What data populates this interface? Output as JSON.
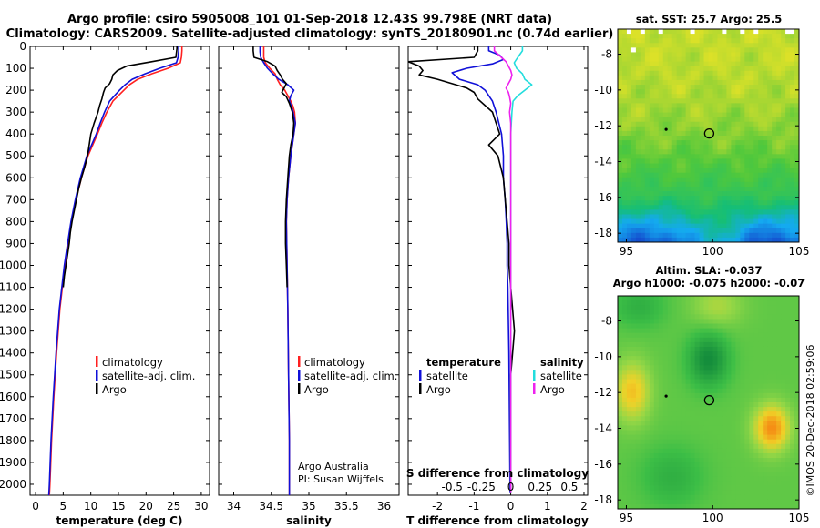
{
  "chart_data": {
    "title_line1": "Argo profile: csiro 5905008_101 01-Sep-2018 12.43S 99.798E (NRT data)",
    "title_line2": "Climatology: CARS2009. Satellite-adjusted climatology: synTS_20180901.nc (0.74d earlier)",
    "credit": "©IMOS 20-Dec-2018 02:59:06",
    "y_ticks": [
      0,
      100,
      200,
      300,
      400,
      500,
      600,
      700,
      800,
      900,
      1000,
      1100,
      1200,
      1300,
      1400,
      1500,
      1600,
      1700,
      1800,
      1900,
      2000
    ],
    "ylim": [
      0,
      2050
    ],
    "colors": {
      "climatology": "#ff2020",
      "satellite": "#1010d8",
      "argo": "#000000",
      "sat_salinity": "#22dddd",
      "argo_salinity": "#ee22ee"
    },
    "panels": [
      {
        "type": "line",
        "xlabel": "temperature (deg C)",
        "xlim": [
          -1,
          31.5
        ],
        "x_ticks": [
          0,
          5,
          10,
          15,
          20,
          25,
          30
        ],
        "x_tick_labels": [
          "0",
          "5",
          "10",
          "15",
          "20",
          "25",
          "30"
        ],
        "legend": [
          "climatology",
          "satellite-adj. clim.",
          "Argo"
        ],
        "series": [
          {
            "name": "climatology",
            "color": "climatology",
            "depth": [
              0,
              20,
              50,
              75,
              100,
              125,
              150,
              175,
              200,
              250,
              300,
              350,
              400,
              500,
              600,
              700,
              800,
              900,
              1000,
              1200,
              1400,
              1600,
              1800,
              2000,
              2050
            ],
            "values": [
              26.5,
              26.5,
              26.4,
              26.2,
              24.0,
              21.0,
              18.5,
              17.0,
              16.0,
              14.0,
              12.9,
              12.0,
              11.2,
              9.5,
              8.3,
              7.3,
              6.5,
              5.9,
              5.3,
              4.4,
              3.8,
              3.3,
              2.9,
              2.6,
              2.5
            ]
          },
          {
            "name": "satellite-adj. clim.",
            "color": "satellite",
            "depth": [
              0,
              20,
              50,
              75,
              100,
              125,
              150,
              175,
              200,
              250,
              300,
              350,
              400,
              500,
              600,
              700,
              800,
              900,
              1000,
              1200,
              1400,
              1600,
              1800,
              2000,
              2050
            ],
            "values": [
              25.9,
              25.9,
              25.8,
              25.5,
              22.5,
              19.8,
              17.5,
              16.2,
              15.2,
              13.4,
              12.5,
              11.7,
              11.0,
              9.3,
              8.1,
              7.2,
              6.4,
              5.8,
              5.2,
              4.3,
              3.7,
              3.2,
              2.8,
              2.5,
              2.4
            ]
          },
          {
            "name": "Argo",
            "color": "argo",
            "depth": [
              0,
              10,
              30,
              50,
              70,
              90,
              110,
              130,
              150,
              170,
              190,
              210,
              240,
              270,
              300,
              350,
              400,
              450,
              500,
              550,
              600,
              650,
              700,
              750,
              800,
              850,
              900,
              950,
              1000,
              1050,
              1100
            ],
            "values": [
              25.6,
              25.6,
              25.5,
              25.4,
              21.0,
              16.5,
              14.8,
              14.0,
              13.8,
              13.4,
              12.6,
              12.3,
              12.0,
              11.6,
              11.3,
              10.6,
              10.0,
              9.7,
              9.4,
              8.9,
              8.3,
              7.8,
              7.4,
              7.0,
              6.6,
              6.3,
              6.1,
              5.8,
              5.5,
              5.2,
              5.0
            ]
          }
        ]
      },
      {
        "type": "line",
        "xlabel": "salinity",
        "xlim": [
          33.8,
          36.2
        ],
        "x_ticks": [
          34,
          34.5,
          35,
          35.5,
          36
        ],
        "x_tick_labels": [
          "34",
          "34.5",
          "35",
          "35.5",
          "36"
        ],
        "legend": [
          "climatology",
          "satellite-adj. clim.",
          "Argo"
        ],
        "annotations": [
          "Argo Australia",
          "PI: Susan Wijffels"
        ],
        "series": [
          {
            "name": "climatology",
            "color": "climatology",
            "depth": [
              0,
              25,
              50,
              75,
              100,
              125,
              150,
              175,
              200,
              225,
              250,
              275,
              300,
              350,
              400,
              500,
              600,
              700,
              800,
              1000,
              1200,
              1500,
              1800,
              2000,
              2050
            ],
            "values": [
              34.4,
              34.4,
              34.4,
              34.42,
              34.48,
              34.55,
              34.58,
              34.62,
              34.68,
              34.72,
              34.76,
              34.79,
              34.81,
              34.82,
              34.8,
              34.76,
              34.73,
              34.71,
              34.7,
              34.71,
              34.72,
              34.73,
              34.74,
              34.74,
              34.74
            ]
          },
          {
            "name": "satellite-adj. clim.",
            "color": "satellite",
            "depth": [
              0,
              25,
              50,
              75,
              100,
              125,
              150,
              175,
              200,
              225,
              250,
              275,
              300,
              350,
              400,
              500,
              600,
              700,
              800,
              1000,
              1200,
              1500,
              1800,
              2000,
              2050
            ],
            "values": [
              34.35,
              34.35,
              34.36,
              34.4,
              34.45,
              34.52,
              34.6,
              34.72,
              34.8,
              34.76,
              34.74,
              34.77,
              34.79,
              34.82,
              34.8,
              34.76,
              34.73,
              34.71,
              34.7,
              34.71,
              34.72,
              34.73,
              34.74,
              34.74,
              34.74
            ]
          },
          {
            "name": "Argo",
            "color": "argo",
            "depth": [
              0,
              20,
              50,
              70,
              90,
              110,
              130,
              150,
              170,
              190,
              210,
              230,
              260,
              300,
              350,
              400,
              450,
              500,
              600,
              700,
              800,
              900,
              1000,
              1100
            ],
            "values": [
              34.26,
              34.26,
              34.27,
              34.45,
              34.55,
              34.58,
              34.62,
              34.65,
              34.7,
              34.67,
              34.64,
              34.7,
              34.74,
              34.78,
              34.8,
              34.79,
              34.76,
              34.74,
              34.72,
              34.7,
              34.69,
              34.69,
              34.7,
              34.71
            ]
          }
        ]
      },
      {
        "type": "line",
        "xlabel": "T difference from climatology",
        "xlabel_top": "S difference from climatology",
        "xlim": [
          -2.8,
          2.1
        ],
        "x_ticks": [
          -2,
          -1,
          0,
          1,
          2
        ],
        "x_tick_labels": [
          "-2",
          "-1",
          "0",
          "1",
          "2"
        ],
        "x_ticks_top": [
          -1.6,
          -0.8,
          0.8,
          1.6
        ],
        "x_tick_labels_top": [
          "-0.5",
          "-0.25",
          "0.25",
          "0.5"
        ],
        "s_scale": 3.2,
        "legend_left_title": "temperature",
        "legend_left": [
          "satellite",
          "Argo"
        ],
        "legend_right_title": "salinity",
        "legend_right": [
          "satellite",
          "Argo"
        ],
        "series": [
          {
            "name": "T satellite",
            "color": "satellite",
            "depth": [
              0,
              20,
              40,
              60,
              80,
              100,
              120,
              150,
              175,
              200,
              250,
              300,
              400,
              500,
              600,
              700,
              800,
              900,
              1000,
              1100,
              1200,
              1400,
              1600,
              1800,
              2000,
              2040
            ],
            "values": [
              -0.6,
              -0.6,
              -0.3,
              -0.2,
              -0.5,
              -1.2,
              -1.6,
              -1.4,
              -0.9,
              -0.7,
              -0.5,
              -0.4,
              -0.25,
              -0.2,
              -0.2,
              -0.15,
              -0.12,
              -0.1,
              -0.1,
              -0.08,
              -0.07,
              -0.05,
              -0.04,
              -0.03,
              -0.02,
              -0.02
            ]
          },
          {
            "name": "T Argo",
            "color": "argo",
            "depth": [
              0,
              20,
              50,
              70,
              90,
              110,
              130,
              150,
              170,
              190,
              210,
              240,
              270,
              300,
              350,
              400,
              450,
              500,
              600,
              700,
              800,
              900,
              1000,
              1100,
              1200,
              1300,
              1400,
              1500,
              1600,
              1700,
              1800,
              1900,
              2000,
              2040
            ],
            "values": [
              -0.9,
              -0.9,
              -1.0,
              -2.8,
              -2.5,
              -2.4,
              -2.5,
              -2.0,
              -1.6,
              -1.2,
              -1.0,
              -0.9,
              -0.7,
              -0.5,
              -0.4,
              -0.3,
              -0.6,
              -0.35,
              -0.2,
              -0.15,
              -0.1,
              -0.05,
              -0.05,
              0.0,
              0.05,
              0.1,
              0.05,
              0.0,
              0.0,
              0.0,
              0.0,
              0.0,
              0.0,
              0.0
            ]
          },
          {
            "name": "S satellite",
            "color": "sat_salinity",
            "depth": [
              0,
              20,
              50,
              75,
              100,
              125,
              150,
              175,
              200,
              225,
              250,
              300,
              400,
              600,
              800,
              1000,
              1500,
              2000,
              2040
            ],
            "values": [
              0.1,
              0.1,
              0.06,
              0.03,
              0.05,
              0.1,
              0.12,
              0.18,
              0.12,
              0.06,
              0.02,
              0.01,
              0.0,
              0.0,
              0.0,
              0.0,
              0.0,
              0.0,
              0.0
            ]
          },
          {
            "name": "S Argo",
            "color": "argo_salinity",
            "depth": [
              0,
              20,
              50,
              70,
              90,
              110,
              130,
              150,
              170,
              190,
              210,
              230,
              260,
              300,
              350,
              400,
              500,
              600,
              800,
              1000,
              1500,
              2000,
              2040
            ],
            "values": [
              -0.14,
              -0.14,
              -0.08,
              -0.04,
              -0.02,
              0.0,
              0.01,
              0.0,
              -0.02,
              -0.04,
              -0.02,
              -0.01,
              0.0,
              -0.01,
              0.0,
              0.0,
              0.0,
              0.0,
              0.0,
              0.0,
              0.0,
              0.0,
              0.0
            ]
          }
        ]
      }
    ],
    "maps": [
      {
        "type": "heatmap",
        "title": "sat. SST: 25.7 Argo: 25.5",
        "x_ticks": [
          95,
          100,
          105
        ],
        "y_ticks": [
          -8,
          -10,
          -12,
          -14,
          -16,
          -18
        ],
        "y_tick_labels": [
          "-8",
          "-10",
          "-12",
          "-14",
          "-16",
          "-18"
        ],
        "xlim": [
          94.5,
          105
        ],
        "ylim": [
          -18.5,
          -6.6
        ],
        "marker_lon": 99.8,
        "marker_lat": -12.43,
        "dot_lon": 97.3,
        "dot_lat": -12.2
      },
      {
        "type": "heatmap",
        "title_line1": "Altim. SLA: -0.037",
        "title_line2": "Argo h1000: -0.075 h2000: -0.07",
        "x_ticks": [
          95,
          100,
          105
        ],
        "y_ticks": [
          -8,
          -10,
          -12,
          -14,
          -16,
          -18
        ],
        "y_tick_labels": [
          "-8",
          "-10",
          "-12",
          "-14",
          "-16",
          "-18"
        ],
        "xlim": [
          94.5,
          105
        ],
        "ylim": [
          -18.5,
          -6.6
        ],
        "marker_lon": 99.8,
        "marker_lat": -12.43,
        "dot_lon": 97.3,
        "dot_lat": -12.2
      }
    ]
  }
}
